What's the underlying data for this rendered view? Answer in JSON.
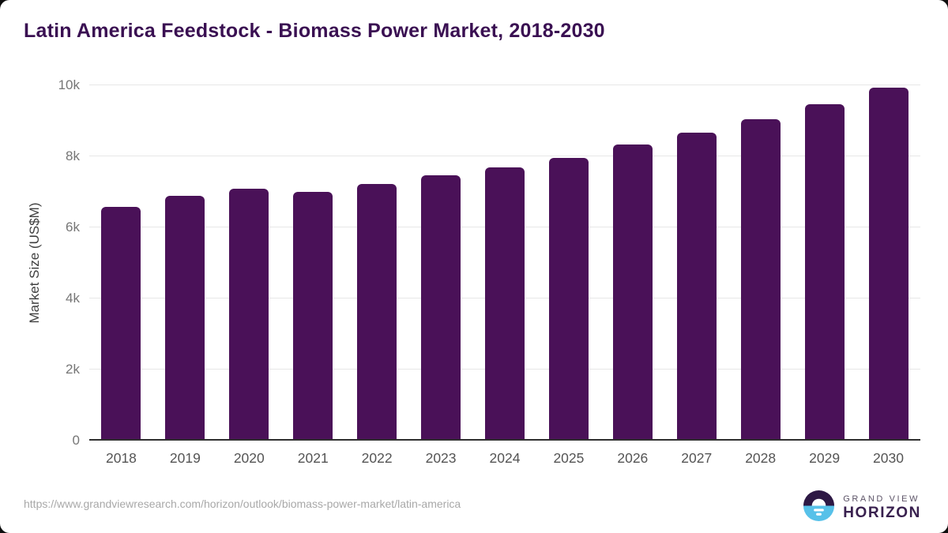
{
  "header": {
    "title": "Latin America Feedstock - Biomass Power Market, 2018-2030",
    "title_color": "#3a1052"
  },
  "chart_data": {
    "type": "bar",
    "title": "Latin America Feedstock - Biomass Power Market, 2018-2030",
    "categories": [
      "2018",
      "2019",
      "2020",
      "2021",
      "2022",
      "2023",
      "2024",
      "2025",
      "2026",
      "2027",
      "2028",
      "2029",
      "2030"
    ],
    "values": [
      6570,
      6890,
      7080,
      7000,
      7220,
      7460,
      7700,
      7960,
      8330,
      8660,
      9040,
      9470,
      9930
    ],
    "xlabel": "",
    "ylabel": "Market Size (US$M)",
    "ylim": [
      0,
      10000
    ],
    "yticks": [
      0,
      2000,
      4000,
      6000,
      8000,
      10000
    ],
    "ytick_labels": [
      "0",
      "2k",
      "4k",
      "6k",
      "8k",
      "10k"
    ],
    "bar_color": "#4a1158",
    "gridline_color": "#e7e7e7",
    "grid": "horizontal",
    "legend_position": "none"
  },
  "footer": {
    "source_url": "https://www.grandviewresearch.com/horizon/outlook/biomass-power-market/latin-america",
    "logo": {
      "brand_top": "GRAND VIEW",
      "brand_bottom": "HORIZON",
      "circle_top_color": "#2d1844",
      "circle_bottom_color": "#57c1e9"
    }
  }
}
